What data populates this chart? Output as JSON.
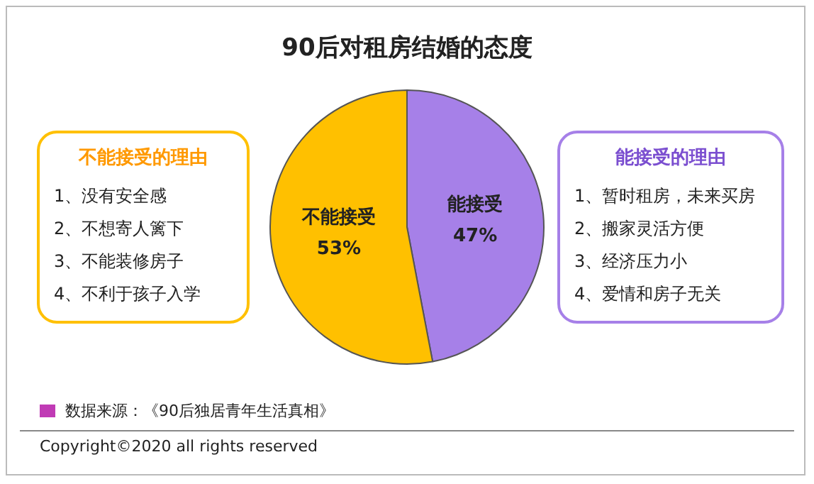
{
  "chart_data": {
    "type": "pie",
    "title": "90后对租房结婚的态度",
    "categories": [
      "能接受",
      "不能接受"
    ],
    "values": [
      47,
      53
    ],
    "colors": [
      "#a680e8",
      "#ffc000"
    ],
    "value_labels": [
      "47%",
      "53%"
    ],
    "legend": false,
    "annotations": [
      "不能接受的理由",
      "1、没有安全感",
      "2、不想寄人篱下",
      "3、不能装修房子",
      "4、不利于孩子入学",
      "能接受的理由",
      "1、暂时租房，未来买房",
      "2、搬家灵活方便",
      "3、经济压力小",
      "4、爱情和房子无关",
      "数据来源：《90后独居青年生活真相》",
      "Copyright©2020 all rights reserved"
    ]
  }
}
